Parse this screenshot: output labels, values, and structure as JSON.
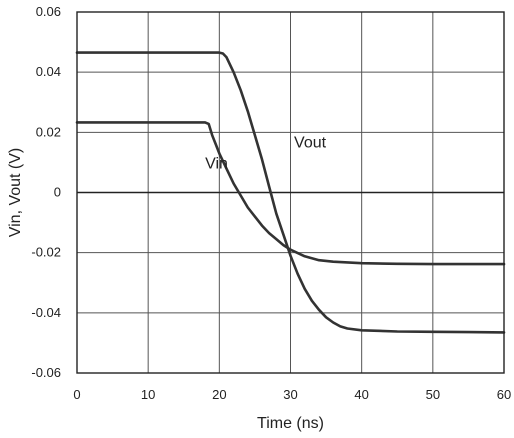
{
  "chart_data": {
    "type": "line",
    "title": "",
    "xlabel": "Time (ns)",
    "ylabel": "Vin, Vout (V)",
    "xlim": [
      0,
      60
    ],
    "ylim": [
      -0.06,
      0.06
    ],
    "x_ticks": [
      0,
      10,
      20,
      30,
      40,
      50,
      60
    ],
    "y_ticks": [
      0.06,
      0.04,
      0.02,
      0,
      -0.02,
      -0.04,
      -0.06
    ],
    "x_tick_labels": [
      "0",
      "10",
      "20",
      "30",
      "40",
      "50",
      "60"
    ],
    "y_tick_labels": [
      "0.06",
      "0.04",
      "0.02",
      "0",
      "-0.02",
      "-0.04",
      "-0.06"
    ],
    "grid": true,
    "legend": "none",
    "annotations": [
      {
        "text": "Vin",
        "x": 18,
        "y": 0.008
      },
      {
        "text": "Vout",
        "x": 30.5,
        "y": 0.015
      }
    ],
    "series": [
      {
        "name": "Vin",
        "color": "#333333",
        "x": [
          0,
          5,
          10,
          15,
          17,
          18,
          18.5,
          19,
          19.5,
          20,
          21,
          22,
          23,
          24,
          25,
          26,
          27,
          28,
          29,
          30,
          32,
          34,
          36,
          40,
          45,
          50,
          55,
          60
        ],
        "y": [
          0.0233,
          0.0233,
          0.0233,
          0.0233,
          0.0233,
          0.0233,
          0.0228,
          0.019,
          0.016,
          0.013,
          0.008,
          0.003,
          -0.001,
          -0.005,
          -0.008,
          -0.011,
          -0.0135,
          -0.0155,
          -0.0175,
          -0.019,
          -0.0212,
          -0.0225,
          -0.023,
          -0.0235,
          -0.0237,
          -0.0238,
          -0.0238,
          -0.0238
        ]
      },
      {
        "name": "Vout",
        "color": "#333333",
        "x": [
          0,
          5,
          10,
          15,
          19,
          20,
          20.5,
          21,
          22,
          23,
          24,
          25,
          26,
          27,
          28,
          29,
          30,
          31,
          32,
          33,
          34,
          35,
          36,
          37,
          38,
          40,
          45,
          50,
          55,
          60
        ],
        "y": [
          0.0465,
          0.0465,
          0.0465,
          0.0465,
          0.0465,
          0.0465,
          0.0462,
          0.045,
          0.04,
          0.034,
          0.027,
          0.019,
          0.011,
          0.002,
          -0.007,
          -0.014,
          -0.021,
          -0.027,
          -0.032,
          -0.036,
          -0.039,
          -0.0415,
          -0.0432,
          -0.0445,
          -0.0452,
          -0.0458,
          -0.0462,
          -0.0463,
          -0.0464,
          -0.0465
        ]
      }
    ]
  }
}
